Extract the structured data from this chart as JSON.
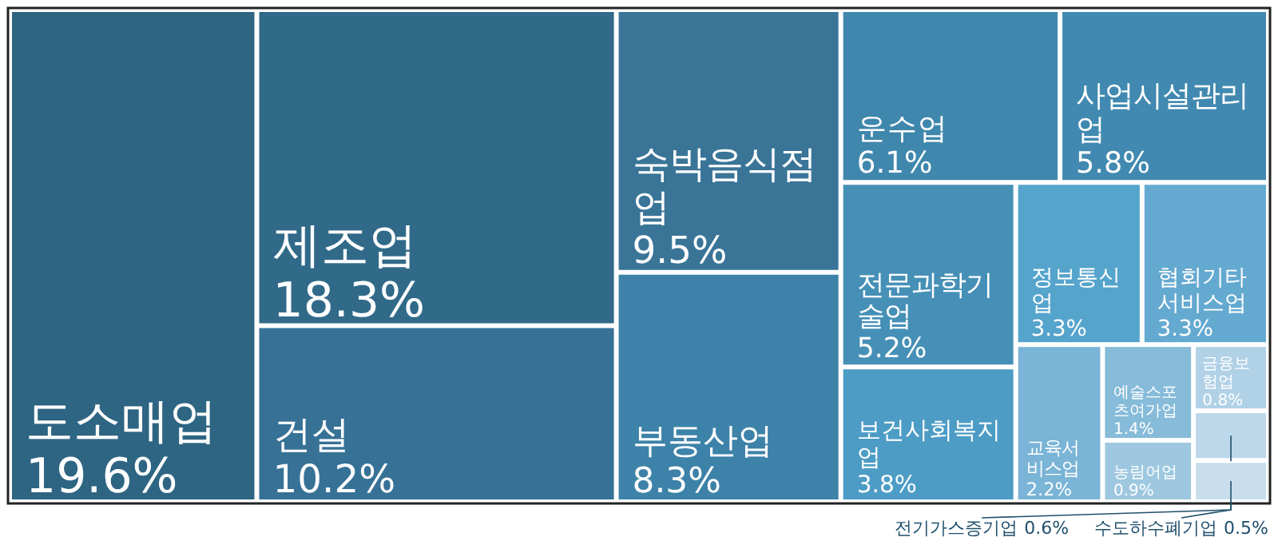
{
  "chart_data": {
    "type": "other",
    "categories": [
      "도소매업",
      "제조업",
      "건설",
      "숙박음식점업",
      "부동산업",
      "운수업",
      "사업시설관리업",
      "전문과학기술업",
      "보건사회복지업",
      "정보통신업",
      "협회기타 서비스업",
      "교육서비스업",
      "예술스포츠여가업",
      "농림어업",
      "금융보험업",
      "전기가스증기업",
      "수도하수폐기업"
    ],
    "values": [
      19.6,
      18.3,
      10.2,
      9.5,
      8.3,
      6.1,
      5.8,
      5.2,
      3.8,
      3.3,
      3.3,
      2.2,
      1.4,
      0.9,
      0.8,
      0.6,
      0.5
    ],
    "value_labels": [
      "19.6%",
      "18.3%",
      "10.2%",
      "9.5%",
      "8.3%",
      "6.1%",
      "5.8%",
      "5.2%",
      "3.8%",
      "3.3%",
      "3.3%",
      "2.2%",
      "1.4%",
      "0.9%",
      "0.8%",
      "0.6%",
      "0.5%"
    ],
    "colors": [
      "#2e6583",
      "#316a89",
      "#377296",
      "#3a7598",
      "#3d82a8",
      "#3f87ad",
      "#4189b0",
      "#4690b7",
      "#4d9cc6",
      "#55a4cc",
      "#64a9d0",
      "#7ab4d6",
      "#86bbd9",
      "#9ec8e0",
      "#b0d1e6",
      "#bcd8ea",
      "#c8deed"
    ]
  }
}
